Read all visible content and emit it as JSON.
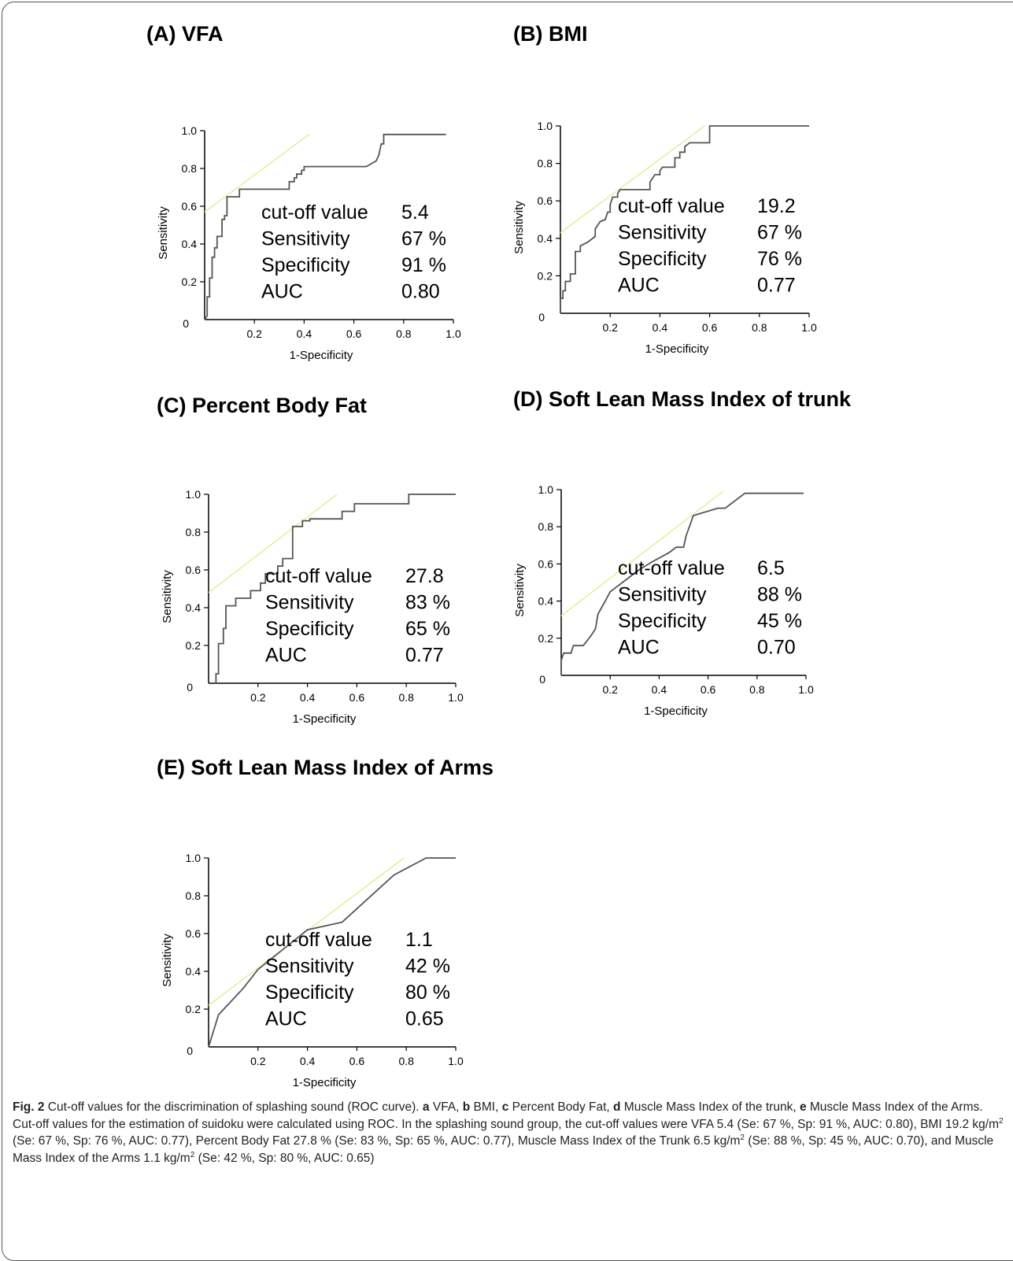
{
  "chart_data": [
    {
      "type": "line",
      "title": "(A) VFA",
      "xlabel": "1-Specificity",
      "ylabel": "Sensitivity",
      "xlim": [
        0,
        1.0
      ],
      "ylim": [
        0,
        1.0
      ],
      "x_ticks": [
        "0",
        "0.2",
        "0.4",
        "0.6",
        "0.8",
        "1.0"
      ],
      "y_ticks": [
        "0",
        "0.2",
        "0.4",
        "0.6",
        "0.8",
        "1.0"
      ],
      "roc_curve": [
        [
          0.0,
          0.0
        ],
        [
          0.01,
          0.02
        ],
        [
          0.01,
          0.12
        ],
        [
          0.02,
          0.12
        ],
        [
          0.02,
          0.22
        ],
        [
          0.03,
          0.22
        ],
        [
          0.03,
          0.33
        ],
        [
          0.04,
          0.33
        ],
        [
          0.04,
          0.38
        ],
        [
          0.05,
          0.38
        ],
        [
          0.05,
          0.44
        ],
        [
          0.07,
          0.44
        ],
        [
          0.07,
          0.53
        ],
        [
          0.08,
          0.53
        ],
        [
          0.08,
          0.55
        ],
        [
          0.09,
          0.55
        ],
        [
          0.09,
          0.65
        ],
        [
          0.14,
          0.65
        ],
        [
          0.14,
          0.69
        ],
        [
          0.34,
          0.69
        ],
        [
          0.34,
          0.73
        ],
        [
          0.36,
          0.73
        ],
        [
          0.36,
          0.75
        ],
        [
          0.37,
          0.75
        ],
        [
          0.37,
          0.77
        ],
        [
          0.39,
          0.77
        ],
        [
          0.39,
          0.79
        ],
        [
          0.4,
          0.79
        ],
        [
          0.4,
          0.81
        ],
        [
          0.65,
          0.81
        ],
        [
          0.69,
          0.84
        ],
        [
          0.7,
          0.87
        ],
        [
          0.71,
          0.93
        ],
        [
          0.72,
          0.93
        ],
        [
          0.72,
          0.98
        ],
        [
          0.97,
          0.98
        ]
      ],
      "tangent_line": [
        [
          0.0,
          0.57
        ],
        [
          0.42,
          0.98
        ]
      ],
      "stats": [
        {
          "label": "cut-off value",
          "value": "5.4"
        },
        {
          "label": "Sensitivity",
          "value": "67 %"
        },
        {
          "label": "Specificity",
          "value": "91 %"
        },
        {
          "label": "AUC",
          "value": "0.80"
        }
      ]
    },
    {
      "type": "line",
      "title": "(B) BMI",
      "xlabel": "1-Specificity",
      "ylabel": "Sensitivity",
      "xlim": [
        0,
        1.0
      ],
      "ylim": [
        0,
        1.0
      ],
      "x_ticks": [
        "0",
        "0.2",
        "0.4",
        "0.6",
        "0.8",
        "1.0"
      ],
      "y_ticks": [
        "0",
        "0.2",
        "0.4",
        "0.6",
        "0.8",
        "1.0"
      ],
      "roc_curve": [
        [
          0.0,
          0.0
        ],
        [
          0.0,
          0.08
        ],
        [
          0.01,
          0.08
        ],
        [
          0.01,
          0.12
        ],
        [
          0.02,
          0.12
        ],
        [
          0.02,
          0.17
        ],
        [
          0.04,
          0.17
        ],
        [
          0.04,
          0.21
        ],
        [
          0.06,
          0.21
        ],
        [
          0.06,
          0.33
        ],
        [
          0.08,
          0.33
        ],
        [
          0.08,
          0.36
        ],
        [
          0.11,
          0.38
        ],
        [
          0.14,
          0.41
        ],
        [
          0.14,
          0.45
        ],
        [
          0.16,
          0.49
        ],
        [
          0.18,
          0.5
        ],
        [
          0.19,
          0.54
        ],
        [
          0.2,
          0.54
        ],
        [
          0.2,
          0.58
        ],
        [
          0.21,
          0.62
        ],
        [
          0.23,
          0.62
        ],
        [
          0.23,
          0.64
        ],
        [
          0.24,
          0.66
        ],
        [
          0.36,
          0.66
        ],
        [
          0.36,
          0.7
        ],
        [
          0.37,
          0.72
        ],
        [
          0.38,
          0.74
        ],
        [
          0.4,
          0.74
        ],
        [
          0.4,
          0.76
        ],
        [
          0.41,
          0.78
        ],
        [
          0.46,
          0.78
        ],
        [
          0.46,
          0.83
        ],
        [
          0.48,
          0.83
        ],
        [
          0.48,
          0.86
        ],
        [
          0.5,
          0.86
        ],
        [
          0.5,
          0.89
        ],
        [
          0.52,
          0.91
        ],
        [
          0.6,
          0.91
        ],
        [
          0.6,
          1.0
        ],
        [
          1.0,
          1.0
        ]
      ],
      "tangent_line": [
        [
          0.0,
          0.43
        ],
        [
          0.58,
          1.0
        ]
      ],
      "stats": [
        {
          "label": "cut-off value",
          "value": "19.2"
        },
        {
          "label": "Sensitivity",
          "value": "67 %"
        },
        {
          "label": "Specificity",
          "value": "76 %"
        },
        {
          "label": "AUC",
          "value": "0.77"
        }
      ]
    },
    {
      "type": "line",
      "title": "(C) Percent Body Fat",
      "xlabel": "1-Specificity",
      "ylabel": "Sensitivity",
      "xlim": [
        0,
        1.0
      ],
      "ylim": [
        0,
        1.0
      ],
      "x_ticks": [
        "0",
        "0.2",
        "0.4",
        "0.6",
        "0.8",
        "1.0"
      ],
      "y_ticks": [
        "0",
        "0.2",
        "0.4",
        "0.6",
        "0.8",
        "1.0"
      ],
      "roc_curve": [
        [
          0.03,
          0.0
        ],
        [
          0.03,
          0.05
        ],
        [
          0.04,
          0.05
        ],
        [
          0.04,
          0.21
        ],
        [
          0.06,
          0.21
        ],
        [
          0.06,
          0.29
        ],
        [
          0.07,
          0.29
        ],
        [
          0.07,
          0.41
        ],
        [
          0.11,
          0.41
        ],
        [
          0.11,
          0.45
        ],
        [
          0.17,
          0.45
        ],
        [
          0.17,
          0.49
        ],
        [
          0.21,
          0.49
        ],
        [
          0.21,
          0.53
        ],
        [
          0.23,
          0.53
        ],
        [
          0.23,
          0.58
        ],
        [
          0.28,
          0.58
        ],
        [
          0.28,
          0.62
        ],
        [
          0.3,
          0.62
        ],
        [
          0.3,
          0.66
        ],
        [
          0.34,
          0.66
        ],
        [
          0.34,
          0.83
        ],
        [
          0.38,
          0.83
        ],
        [
          0.38,
          0.86
        ],
        [
          0.41,
          0.86
        ],
        [
          0.41,
          0.87
        ],
        [
          0.54,
          0.87
        ],
        [
          0.54,
          0.91
        ],
        [
          0.59,
          0.91
        ],
        [
          0.59,
          0.95
        ],
        [
          0.81,
          0.95
        ],
        [
          0.81,
          1.0
        ],
        [
          1.0,
          1.0
        ]
      ],
      "tangent_line": [
        [
          0.0,
          0.48
        ],
        [
          0.52,
          1.0
        ]
      ],
      "stats": [
        {
          "label": "cut-off value",
          "value": "27.8"
        },
        {
          "label": "Sensitivity",
          "value": "83 %"
        },
        {
          "label": "Specificity",
          "value": "65 %"
        },
        {
          "label": "AUC",
          "value": "0.77"
        }
      ]
    },
    {
      "type": "line",
      "title": "(D) Soft Lean Mass Index of trunk",
      "xlabel": "1-Specificity",
      "ylabel": "Sensitivity",
      "xlim": [
        0,
        1.0
      ],
      "ylim": [
        0,
        1.0
      ],
      "x_ticks": [
        "0",
        "0.2",
        "0.4",
        "0.6",
        "0.8",
        "1.0"
      ],
      "y_ticks": [
        "0",
        "0.2",
        "0.4",
        "0.6",
        "0.8",
        "1.0"
      ],
      "roc_curve": [
        [
          0.0,
          0.0
        ],
        [
          0.0,
          0.08
        ],
        [
          0.01,
          0.12
        ],
        [
          0.04,
          0.12
        ],
        [
          0.05,
          0.16
        ],
        [
          0.09,
          0.16
        ],
        [
          0.12,
          0.21
        ],
        [
          0.14,
          0.25
        ],
        [
          0.15,
          0.33
        ],
        [
          0.18,
          0.4
        ],
        [
          0.2,
          0.45
        ],
        [
          0.26,
          0.51
        ],
        [
          0.32,
          0.57
        ],
        [
          0.37,
          0.61
        ],
        [
          0.44,
          0.66
        ],
        [
          0.47,
          0.69
        ],
        [
          0.5,
          0.69
        ],
        [
          0.51,
          0.75
        ],
        [
          0.54,
          0.86
        ],
        [
          0.64,
          0.9
        ],
        [
          0.67,
          0.9
        ],
        [
          0.75,
          0.98
        ],
        [
          0.77,
          0.98
        ],
        [
          0.99,
          0.98
        ]
      ],
      "tangent_line": [
        [
          0.0,
          0.32
        ],
        [
          0.66,
          0.99
        ]
      ],
      "stats": [
        {
          "label": "cut-off value",
          "value": "6.5"
        },
        {
          "label": "Sensitivity",
          "value": "88 %"
        },
        {
          "label": "Specificity",
          "value": "45 %"
        },
        {
          "label": "AUC",
          "value": "0.70"
        }
      ]
    },
    {
      "type": "line",
      "title": "(E) Soft Lean Mass Index of Arms",
      "xlabel": "1-Specificity",
      "ylabel": "Sensitivity",
      "xlim": [
        0,
        1.0
      ],
      "ylim": [
        0,
        1.0
      ],
      "x_ticks": [
        "0",
        "0.2",
        "0.4",
        "0.6",
        "0.8",
        "1.0"
      ],
      "y_ticks": [
        "0",
        "0.2",
        "0.4",
        "0.6",
        "0.8",
        "1.0"
      ],
      "roc_curve": [
        [
          0.0,
          0.0
        ],
        [
          0.04,
          0.17
        ],
        [
          0.09,
          0.24
        ],
        [
          0.14,
          0.31
        ],
        [
          0.2,
          0.41
        ],
        [
          0.4,
          0.62
        ],
        [
          0.54,
          0.66
        ],
        [
          0.75,
          0.91
        ],
        [
          0.88,
          1.0
        ],
        [
          1.0,
          1.0
        ]
      ],
      "tangent_line": [
        [
          0.0,
          0.22
        ],
        [
          0.79,
          1.0
        ]
      ],
      "stats": [
        {
          "label": "cut-off value",
          "value": "1.1"
        },
        {
          "label": "Sensitivity",
          "value": "42 %"
        },
        {
          "label": "Specificity",
          "value": "80 %"
        },
        {
          "label": "AUC",
          "value": "0.65"
        }
      ]
    }
  ],
  "colors": {
    "roc_curve": "#555555",
    "tangent_line": "#ecec9a",
    "axis": "#000000"
  },
  "caption": {
    "fig": "Fig. 2",
    "t1": " Cut-off values for the discrimination of splashing sound (ROC curve). ",
    "ka": "a",
    "ta": " VFA, ",
    "kb": "b",
    "tb": " BMI, ",
    "kc": "c",
    "tc": " Percent Body Fat, ",
    "kd": "d",
    "td": " Muscle Mass Index of the trunk, ",
    "ke": "e",
    "te": " Muscle Mass Index of the Arms. Cut-off values for the estimation of suidoku were calculated using ROC. In the splashing sound group, the cut-off values were VFA 5.4 (Se: 67 %, Sp: 91 %, AUC: 0.80), BMI 19.2 kg/m",
    "s1": "2",
    "t2": " (Se: 67 %, Sp: 76 %, AUC: 0.77), Percent Body Fat 27.8 % (Se: 83 %, Sp: 65 %, AUC: 0.77), Muscle Mass Index of the Trunk 6.5 kg/m",
    "s2": "2",
    "t3": " (Se: 88 %, Sp: 45 %, AUC: 0.70), and Muscle Mass Index of the Arms 1.1 kg/m",
    "s3": "2",
    "t4": " (Se: 42 %, Sp: 80 %, AUC: 0.65)"
  }
}
